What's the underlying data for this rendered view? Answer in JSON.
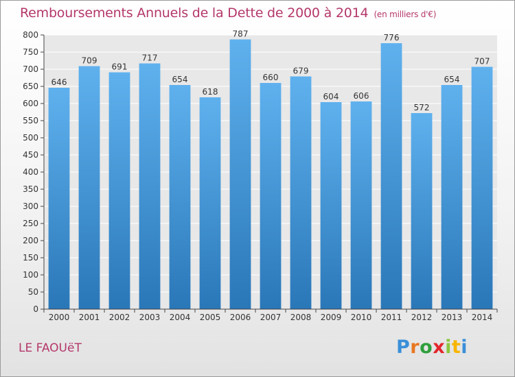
{
  "title": "Remboursements Annuels de la Dette de 2000 à 2014",
  "unit_note": "(en milliers d'€)",
  "location": "LE FAOUëT",
  "logo": {
    "text": "Proxiti",
    "letter_colors": [
      "#3a8fd8",
      "#e87722",
      "#2e9f3c",
      "#e2262c",
      "#8cc63f",
      "#f7b500",
      "#3a8fd8"
    ]
  },
  "colors": {
    "title": "#b4376a",
    "bar_top": "#5fb1ee",
    "bar_bottom": "#2a77b8",
    "grid": "#ffffff",
    "axis": "#444444"
  },
  "chart_data": {
    "type": "bar",
    "title": "Remboursements Annuels de la Dette de 2000 à 2014",
    "xlabel": "",
    "ylabel": "",
    "ylim": [
      0,
      800
    ],
    "ytick_step": 50,
    "grid": true,
    "categories": [
      "2000",
      "2001",
      "2002",
      "2003",
      "2004",
      "2005",
      "2006",
      "2007",
      "2008",
      "2009",
      "2010",
      "2011",
      "2012",
      "2013",
      "2014"
    ],
    "values": [
      646,
      709,
      691,
      717,
      654,
      618,
      787,
      660,
      679,
      604,
      606,
      776,
      572,
      654,
      707
    ]
  }
}
